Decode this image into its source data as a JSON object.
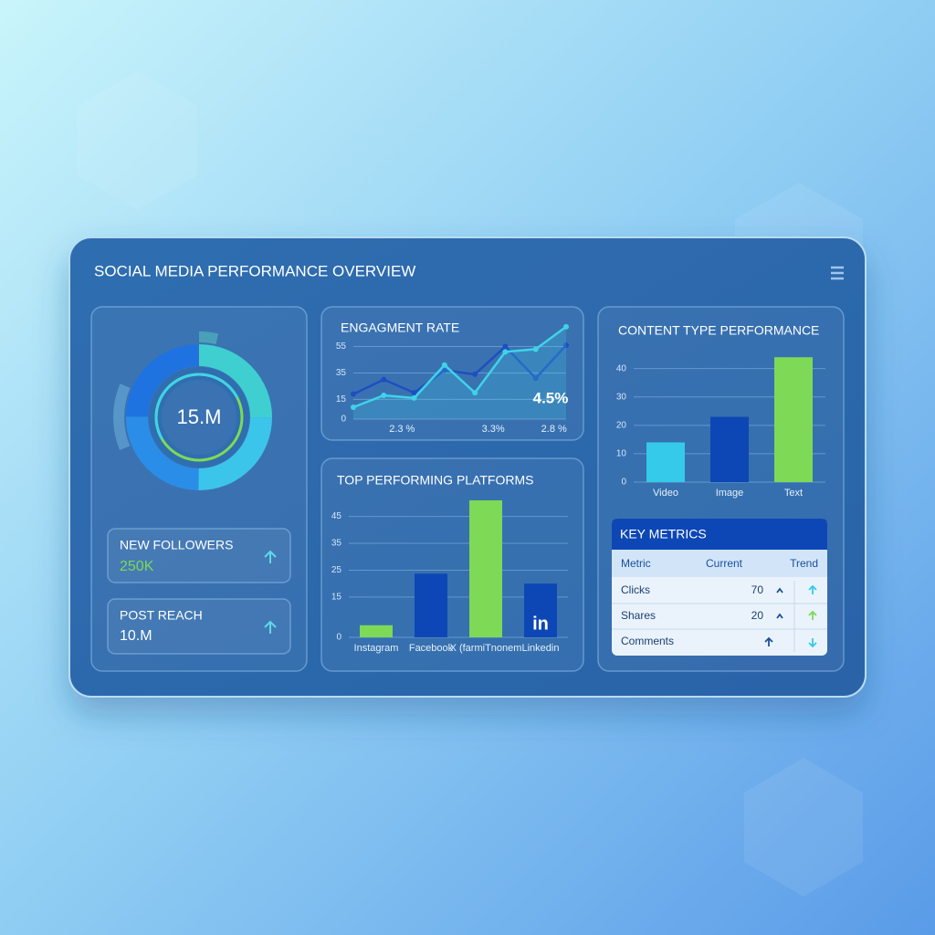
{
  "header": {
    "title": "SOCIAL MEDIA PERFORMANCE OVERVIEW"
  },
  "donut": {
    "center_label": "15.M"
  },
  "cards": [
    {
      "label": "NEW FOLLOWERS",
      "value": "250K"
    },
    {
      "label": "POST REACH",
      "value": "10.M"
    }
  ],
  "chart_data": [
    {
      "type": "line",
      "title": "ENGAGMENT RATE",
      "categories": [
        null,
        "2.3 %",
        null,
        null,
        "3.3%",
        null,
        "2.8 %",
        null
      ],
      "series": [
        {
          "color": "#1e4fc0",
          "values": [
            19,
            30,
            20,
            37,
            34,
            55,
            31,
            56
          ]
        },
        {
          "color": "#3fd3e8",
          "values": [
            9,
            18,
            16,
            41,
            20,
            51,
            53,
            70
          ],
          "area": true
        }
      ],
      "ylim": [
        0,
        72
      ],
      "yticks": [
        0,
        15,
        35,
        55
      ],
      "grid": true,
      "annotation": "4.5%"
    },
    {
      "type": "bar",
      "title": "TOP PERFORMING PLATFORMS",
      "categories": [
        "Instagram",
        "Facebook",
        "X (farmiTnonem",
        "Linkedin"
      ],
      "values": [
        4.5,
        23.7,
        51,
        20
      ],
      "colors": [
        "#7ed957",
        "#0d47b5",
        "#7ed957",
        "#0d47b5"
      ],
      "ylim": [
        0,
        52
      ],
      "yticks": [
        0,
        15,
        25,
        35,
        45
      ],
      "grid": true,
      "icon_text": "in"
    },
    {
      "type": "bar",
      "title": "CONTENT TYPE PERFORMANCE",
      "categories": [
        "Video",
        "Image",
        "Text"
      ],
      "values": [
        14,
        23,
        44
      ],
      "colors": [
        "#35c9ea",
        "#0d47b5",
        "#7ed957"
      ],
      "ylim": [
        0,
        46
      ],
      "yticks": [
        0,
        10,
        20,
        30,
        40
      ],
      "grid": true
    }
  ],
  "table": {
    "title": "KEY METRICS",
    "columns": [
      "Metric",
      "Current",
      "Trend"
    ],
    "rows": [
      [
        "Clicks",
        "70"
      ],
      [
        "Shares",
        "20"
      ],
      [
        "Comments"
      ]
    ]
  }
}
